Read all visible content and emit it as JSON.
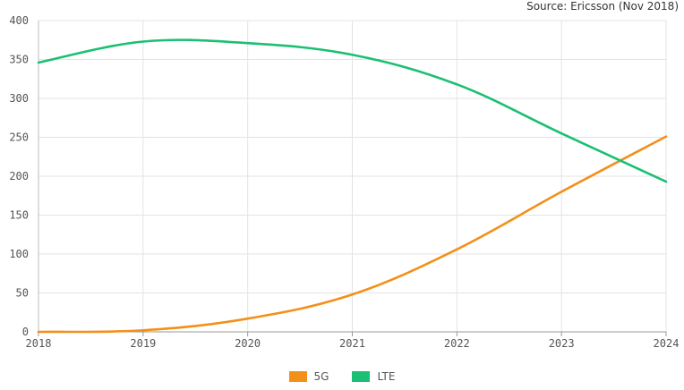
{
  "source": "Source: Ericsson (Nov 2018)",
  "chart_data": {
    "type": "line",
    "x": [
      "2018",
      "2019",
      "2020",
      "2021",
      "2022",
      "2023",
      "2024"
    ],
    "ylim": [
      0,
      400
    ],
    "yticks": [
      0,
      50,
      100,
      150,
      200,
      250,
      300,
      350,
      400
    ],
    "grid": true,
    "legend_position": "bottom",
    "series": [
      {
        "name": "5G",
        "color": "#F39019",
        "values": [
          0,
          2,
          17,
          48,
          106,
          180,
          251
        ]
      },
      {
        "name": "LTE",
        "color": "#1CBF73",
        "values": [
          346,
          373,
          371,
          356,
          318,
          255,
          193
        ]
      }
    ]
  }
}
